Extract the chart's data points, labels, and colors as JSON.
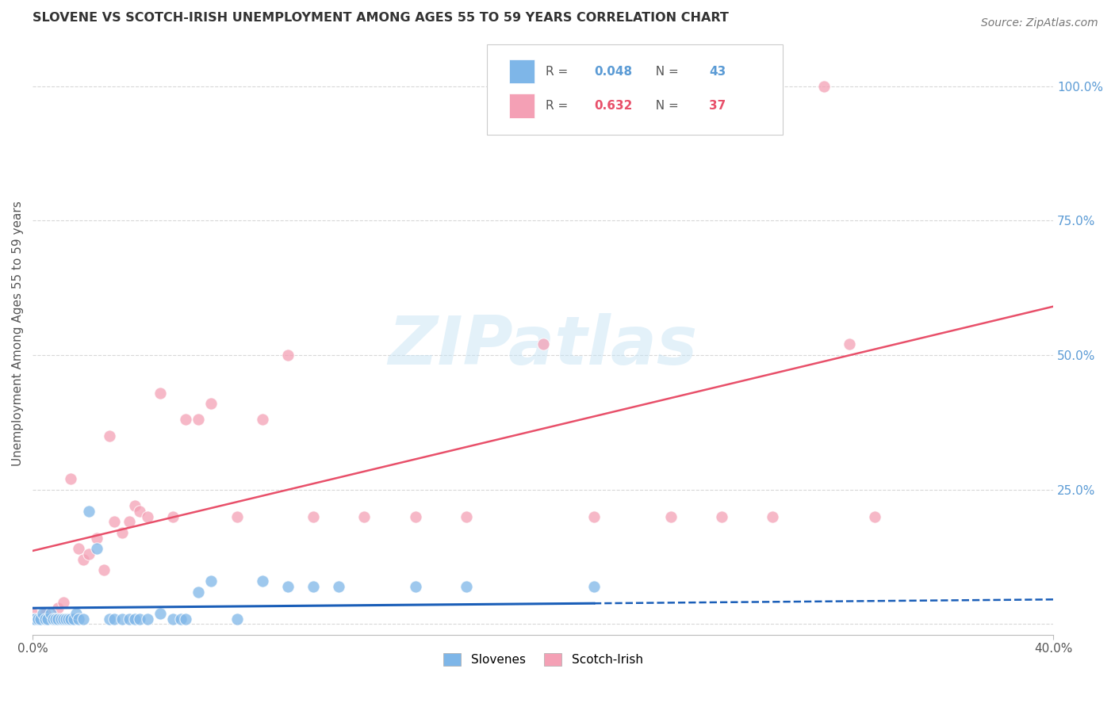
{
  "title": "SLOVENE VS SCOTCH-IRISH UNEMPLOYMENT AMONG AGES 55 TO 59 YEARS CORRELATION CHART",
  "source": "Source: ZipAtlas.com",
  "ylabel": "Unemployment Among Ages 55 to 59 years",
  "ylabel_right_ticks": [
    "100.0%",
    "75.0%",
    "50.0%",
    "25.0%"
  ],
  "ylabel_right_vals": [
    1.0,
    0.75,
    0.5,
    0.25
  ],
  "xlim": [
    0.0,
    0.4
  ],
  "ylim": [
    -0.02,
    1.1
  ],
  "slovene_color": "#7eb6e8",
  "scotch_color": "#f4a0b5",
  "slovene_line_color": "#1a5eb8",
  "scotch_line_color": "#e8506a",
  "grid_color": "#d8d8d8",
  "background_color": "#ffffff",
  "watermark_text": "ZIPatlas",
  "legend_label_slovene": "Slovenes",
  "legend_label_scotch": "Scotch-Irish",
  "slovene_R": "0.048",
  "slovene_N": "43",
  "scotch_R": "0.632",
  "scotch_N": "37",
  "slovene_x": [
    0.0,
    0.001,
    0.002,
    0.003,
    0.004,
    0.005,
    0.006,
    0.007,
    0.008,
    0.009,
    0.01,
    0.011,
    0.012,
    0.013,
    0.014,
    0.015,
    0.016,
    0.017,
    0.018,
    0.02,
    0.022,
    0.025,
    0.03,
    0.032,
    0.035,
    0.038,
    0.04,
    0.042,
    0.045,
    0.05,
    0.055,
    0.058,
    0.06,
    0.065,
    0.07,
    0.08,
    0.09,
    0.1,
    0.11,
    0.12,
    0.15,
    0.17,
    0.22
  ],
  "slovene_y": [
    0.01,
    0.01,
    0.01,
    0.01,
    0.02,
    0.01,
    0.01,
    0.02,
    0.01,
    0.01,
    0.01,
    0.01,
    0.01,
    0.01,
    0.01,
    0.01,
    0.01,
    0.02,
    0.01,
    0.01,
    0.21,
    0.14,
    0.01,
    0.01,
    0.01,
    0.01,
    0.01,
    0.01,
    0.01,
    0.02,
    0.01,
    0.01,
    0.01,
    0.06,
    0.08,
    0.01,
    0.08,
    0.07,
    0.07,
    0.07,
    0.07,
    0.07,
    0.07
  ],
  "scotch_x": [
    0.0,
    0.005,
    0.01,
    0.012,
    0.015,
    0.018,
    0.02,
    0.022,
    0.025,
    0.028,
    0.03,
    0.032,
    0.035,
    0.038,
    0.04,
    0.042,
    0.045,
    0.05,
    0.055,
    0.06,
    0.065,
    0.07,
    0.08,
    0.09,
    0.1,
    0.11,
    0.13,
    0.15,
    0.17,
    0.2,
    0.22,
    0.25,
    0.27,
    0.29,
    0.31,
    0.32,
    0.33
  ],
  "scotch_y": [
    0.02,
    0.02,
    0.03,
    0.04,
    0.27,
    0.14,
    0.12,
    0.13,
    0.16,
    0.1,
    0.35,
    0.19,
    0.17,
    0.19,
    0.22,
    0.21,
    0.2,
    0.43,
    0.2,
    0.38,
    0.38,
    0.41,
    0.2,
    0.38,
    0.5,
    0.2,
    0.2,
    0.2,
    0.2,
    0.52,
    0.2,
    0.2,
    0.2,
    0.2,
    1.0,
    0.52,
    0.2
  ]
}
